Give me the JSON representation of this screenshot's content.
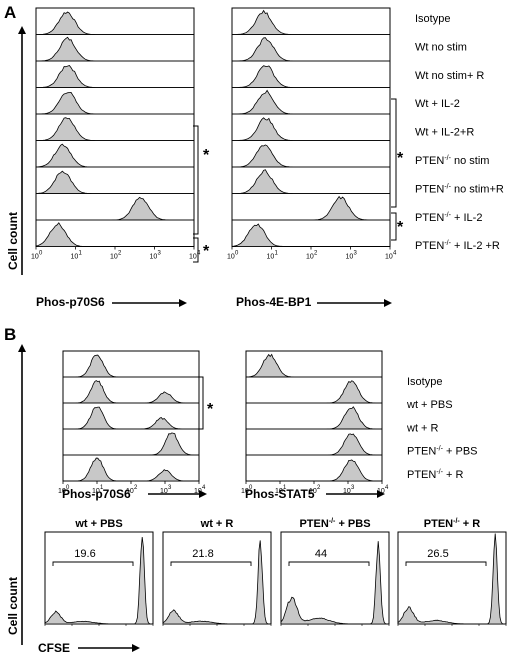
{
  "figure": {
    "panel_a": {
      "letter": "A",
      "y_axis_title": "Cell count",
      "left_x_title": "Phos-p70S6",
      "right_x_title": "Phos-4E-BP1",
      "ticks": [
        "0",
        "1",
        "2",
        "3",
        "4"
      ],
      "rows": [
        {
          "label": "Isotype",
          "sup": "",
          "suffix": ""
        },
        {
          "label": "Wt no stim",
          "sup": "",
          "suffix": ""
        },
        {
          "label": "Wt no stim+ R",
          "sup": "",
          "suffix": ""
        },
        {
          "label": "Wt + IL-2",
          "sup": "",
          "suffix": ""
        },
        {
          "label": "Wt + IL-2+R",
          "sup": "",
          "suffix": ""
        },
        {
          "label": "PTEN",
          "sup": "-/-",
          "suffix": " no stim"
        },
        {
          "label": "PTEN",
          "sup": "-/-",
          "suffix": " no stim+R"
        },
        {
          "label": "PTEN",
          "sup": "-/-",
          "suffix": " + IL-2"
        },
        {
          "label": "PTEN",
          "sup": "-/-",
          "suffix": " + IL-2 +R"
        }
      ],
      "stars": [
        "*",
        "*"
      ],
      "left_peaks": [
        0.78,
        0.8,
        0.8,
        0.8,
        0.78,
        0.68,
        0.68,
        2.65,
        0.55
      ],
      "right_peaks": [
        0.8,
        0.85,
        0.85,
        0.85,
        0.85,
        0.82,
        0.82,
        2.75,
        0.62
      ]
    },
    "panel_b": {
      "letter": "B",
      "y_axis_title": "Cell count",
      "left_x_title": "Phos-p70S6",
      "right_x_title": "Phos-STAT5",
      "ticks": [
        "0",
        "1",
        "2",
        "3",
        "4"
      ],
      "rows": [
        {
          "label": "Isotype",
          "sup": "",
          "suffix": ""
        },
        {
          "label": "wt + PBS",
          "sup": "",
          "suffix": ""
        },
        {
          "label": "wt + R",
          "sup": "",
          "suffix": ""
        },
        {
          "label": "PTEN",
          "sup": "-/-",
          "suffix": " + PBS"
        },
        {
          "label": "PTEN",
          "sup": "-/-",
          "suffix": " + R"
        }
      ],
      "star": "*",
      "left_peaks": [
        [
          1.0
        ],
        [
          1.0,
          3.0
        ],
        [
          1.0,
          2.9
        ],
        [
          3.2
        ],
        [
          1.0,
          3.0
        ]
      ],
      "right_peaks": [
        0.7,
        3.1,
        3.1,
        3.1,
        3.1
      ],
      "cfse_x_title": "CFSE",
      "cfse_panels": [
        {
          "title": "wt + PBS",
          "sup": "",
          "gate_value": "19.6",
          "gated_fraction": 0.196
        },
        {
          "title": "wt + R",
          "sup": "",
          "gate_value": "21.8",
          "gated_fraction": 0.218
        },
        {
          "title": "PTEN",
          "sup": "-/-",
          "title_suffix": " + PBS",
          "gate_value": "44",
          "gated_fraction": 0.44
        },
        {
          "title": "PTEN",
          "sup": "-/-",
          "title_suffix": " + R",
          "gate_value": "26.5",
          "gated_fraction": 0.265
        }
      ]
    }
  }
}
